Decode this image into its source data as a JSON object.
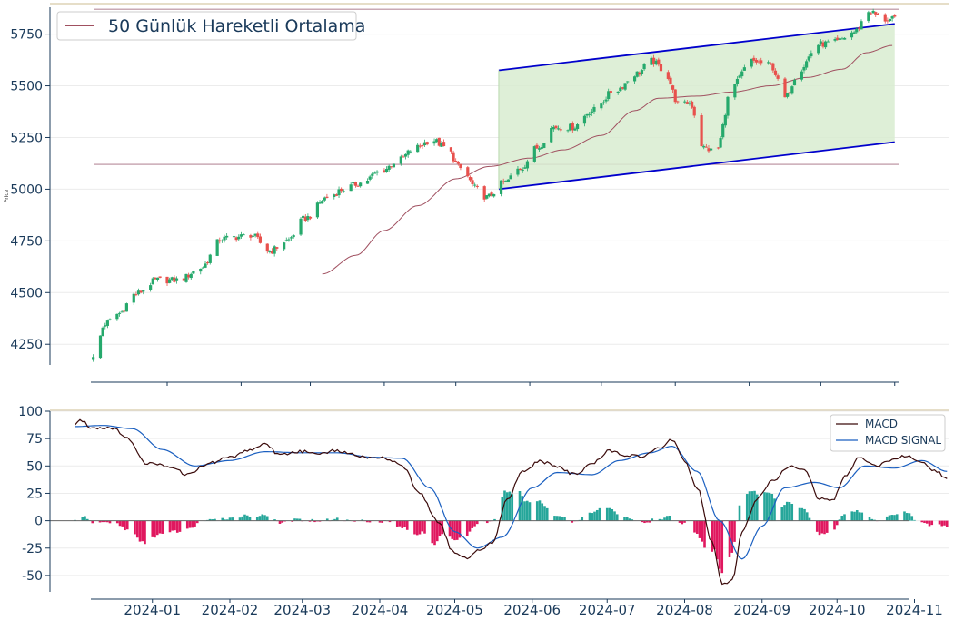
{
  "chart_data": [
    {
      "type": "candlestick",
      "ylabel": "Price",
      "ylim": [
        4150,
        5880
      ],
      "yticks": [
        4250,
        4500,
        4750,
        5000,
        5250,
        5500,
        5750
      ],
      "legend": {
        "placement": "top-left",
        "entries": [
          "50 Günlük Hareketli Ortalama"
        ]
      },
      "colors": {
        "up": "#26a96c",
        "down": "#e8514d",
        "ma": "#a05060",
        "channel": "#0000cc",
        "channel_fill": "#d8ecd0",
        "hline": "#c9a9b4"
      },
      "horizontal_lines": [
        5120,
        5870
      ],
      "channel": {
        "upper": [
          [
            "2024-05-19",
            5575
          ],
          [
            "2024-11-01",
            5800
          ]
        ],
        "lower": [
          [
            "2024-05-19",
            5000
          ],
          [
            "2024-11-01",
            5228
          ]
        ]
      },
      "ma50_keypoints": [
        [
          "2024-03-06",
          4590
        ],
        [
          "2024-03-20",
          4680
        ],
        [
          "2024-04-01",
          4800
        ],
        [
          "2024-04-15",
          4920
        ],
        [
          "2024-05-01",
          5050
        ],
        [
          "2024-05-15",
          5110
        ],
        [
          "2024-06-01",
          5150
        ],
        [
          "2024-06-15",
          5190
        ],
        [
          "2024-07-01",
          5260
        ],
        [
          "2024-07-15",
          5380
        ],
        [
          "2024-07-25",
          5440
        ],
        [
          "2024-08-10",
          5450
        ],
        [
          "2024-08-25",
          5470
        ],
        [
          "2024-09-10",
          5500
        ],
        [
          "2024-09-25",
          5540
        ],
        [
          "2024-10-10",
          5580
        ],
        [
          "2024-10-20",
          5660
        ],
        [
          "2024-10-31",
          5695
        ]
      ],
      "close_keypoints": [
        [
          "2023-12-01",
          4180
        ],
        [
          "2023-12-06",
          4350
        ],
        [
          "2023-12-12",
          4400
        ],
        [
          "2023-12-18",
          4490
        ],
        [
          "2023-12-28",
          4560
        ],
        [
          "2024-01-06",
          4560
        ],
        [
          "2024-01-15",
          4620
        ],
        [
          "2024-01-24",
          4760
        ],
        [
          "2024-01-31",
          4770
        ],
        [
          "2024-02-05",
          4780
        ],
        [
          "2024-02-13",
          4700
        ],
        [
          "2024-02-20",
          4750
        ],
        [
          "2024-02-28",
          4860
        ],
        [
          "2024-03-08",
          4960
        ],
        [
          "2024-03-15",
          5000
        ],
        [
          "2024-03-22",
          5030
        ],
        [
          "2024-03-31",
          5090
        ],
        [
          "2024-04-07",
          5140
        ],
        [
          "2024-04-14",
          5200
        ],
        [
          "2024-04-21",
          5240
        ],
        [
          "2024-04-27",
          5200
        ],
        [
          "2024-05-03",
          5100
        ],
        [
          "2024-05-10",
          5000
        ],
        [
          "2024-05-14",
          4960
        ],
        [
          "2024-05-21",
          5030
        ],
        [
          "2024-05-28",
          5100
        ],
        [
          "2024-06-04",
          5200
        ],
        [
          "2024-06-11",
          5300
        ],
        [
          "2024-06-19",
          5300
        ],
        [
          "2024-06-27",
          5380
        ],
        [
          "2024-07-07",
          5480
        ],
        [
          "2024-07-16",
          5560
        ],
        [
          "2024-07-22",
          5620
        ],
        [
          "2024-07-27",
          5580
        ],
        [
          "2024-08-03",
          5400
        ],
        [
          "2024-08-07",
          5420
        ],
        [
          "2024-08-13",
          5200
        ],
        [
          "2024-08-18",
          5180
        ],
        [
          "2024-08-25",
          5500
        ],
        [
          "2024-09-02",
          5620
        ],
        [
          "2024-09-10",
          5600
        ],
        [
          "2024-09-16",
          5440
        ],
        [
          "2024-09-22",
          5580
        ],
        [
          "2024-09-30",
          5700
        ],
        [
          "2024-10-07",
          5710
        ],
        [
          "2024-10-15",
          5760
        ],
        [
          "2024-10-21",
          5860
        ],
        [
          "2024-10-28",
          5820
        ],
        [
          "2024-11-01",
          5820
        ]
      ],
      "x_range": [
        "2023-11-30",
        "2024-11-03"
      ]
    },
    {
      "type": "macd",
      "ylim": [
        -65,
        100
      ],
      "yticks": [
        -50,
        -25,
        0,
        25,
        50,
        75,
        100
      ],
      "xticks": [
        "2024-01",
        "2024-02",
        "2024-03",
        "2024-04",
        "2024-05",
        "2024-06",
        "2024-07",
        "2024-08",
        "2024-09",
        "2024-10",
        "2024-11"
      ],
      "legend": {
        "placement": "top-right",
        "entries": [
          "MACD",
          "MACD SIGNAL"
        ]
      },
      "colors": {
        "macd": "#3a0a0a",
        "signal": "#1a5fc0",
        "hist_pos": "#26a69a",
        "hist_neg": "#e0185f"
      },
      "macd_keypoints": [
        [
          "2023-12-01",
          88
        ],
        [
          "2023-12-03",
          92
        ],
        [
          "2023-12-08",
          85
        ],
        [
          "2023-12-16",
          85
        ],
        [
          "2023-12-22",
          75
        ],
        [
          "2023-12-30",
          52
        ],
        [
          "2024-01-08",
          50
        ],
        [
          "2024-01-15",
          42
        ],
        [
          "2024-01-23",
          52
        ],
        [
          "2024-02-01",
          58
        ],
        [
          "2024-02-08",
          64
        ],
        [
          "2024-02-15",
          70
        ],
        [
          "2024-02-21",
          60
        ],
        [
          "2024-02-28",
          63
        ],
        [
          "2024-03-08",
          62
        ],
        [
          "2024-03-15",
          64
        ],
        [
          "2024-03-22",
          60
        ],
        [
          "2024-03-28",
          58
        ],
        [
          "2024-04-03",
          57
        ],
        [
          "2024-04-10",
          50
        ],
        [
          "2024-04-17",
          25
        ],
        [
          "2024-04-24",
          0
        ],
        [
          "2024-05-01",
          -30
        ],
        [
          "2024-05-06",
          -34
        ],
        [
          "2024-05-12",
          -25
        ],
        [
          "2024-05-16",
          -20
        ],
        [
          "2024-05-22",
          20
        ],
        [
          "2024-05-28",
          45
        ],
        [
          "2024-06-04",
          54
        ],
        [
          "2024-06-11",
          50
        ],
        [
          "2024-06-18",
          42
        ],
        [
          "2024-06-25",
          52
        ],
        [
          "2024-07-02",
          64
        ],
        [
          "2024-07-09",
          60
        ],
        [
          "2024-07-15",
          58
        ],
        [
          "2024-07-22",
          66
        ],
        [
          "2024-07-27",
          74
        ],
        [
          "2024-08-01",
          55
        ],
        [
          "2024-08-06",
          30
        ],
        [
          "2024-08-12",
          -20
        ],
        [
          "2024-08-16",
          -58
        ],
        [
          "2024-08-20",
          -55
        ],
        [
          "2024-08-24",
          -10
        ],
        [
          "2024-08-30",
          20
        ],
        [
          "2024-09-06",
          38
        ],
        [
          "2024-09-12",
          50
        ],
        [
          "2024-09-18",
          46
        ],
        [
          "2024-09-24",
          20
        ],
        [
          "2024-09-29",
          18
        ],
        [
          "2024-10-04",
          40
        ],
        [
          "2024-10-10",
          58
        ],
        [
          "2024-10-17",
          50
        ],
        [
          "2024-10-23",
          55
        ],
        [
          "2024-10-29",
          60
        ],
        [
          "2024-11-04",
          52
        ],
        [
          "2024-11-10",
          45
        ],
        [
          "2024-11-14",
          38
        ]
      ],
      "signal_keypoints": [
        [
          "2023-12-01",
          86
        ],
        [
          "2023-12-12",
          87
        ],
        [
          "2023-12-24",
          84
        ],
        [
          "2024-01-05",
          65
        ],
        [
          "2024-01-18",
          50
        ],
        [
          "2024-02-01",
          55
        ],
        [
          "2024-02-15",
          63
        ],
        [
          "2024-03-01",
          62
        ],
        [
          "2024-03-15",
          62
        ],
        [
          "2024-03-29",
          58
        ],
        [
          "2024-04-10",
          57
        ],
        [
          "2024-04-21",
          30
        ],
        [
          "2024-05-01",
          -10
        ],
        [
          "2024-05-10",
          -25
        ],
        [
          "2024-05-20",
          -15
        ],
        [
          "2024-06-01",
          30
        ],
        [
          "2024-06-11",
          44
        ],
        [
          "2024-06-25",
          42
        ],
        [
          "2024-07-06",
          55
        ],
        [
          "2024-07-18",
          62
        ],
        [
          "2024-07-27",
          68
        ],
        [
          "2024-08-06",
          45
        ],
        [
          "2024-08-15",
          0
        ],
        [
          "2024-08-24",
          -35
        ],
        [
          "2024-09-01",
          -5
        ],
        [
          "2024-09-10",
          30
        ],
        [
          "2024-09-22",
          35
        ],
        [
          "2024-10-02",
          30
        ],
        [
          "2024-10-12",
          50
        ],
        [
          "2024-10-24",
          48
        ],
        [
          "2024-11-04",
          55
        ],
        [
          "2024-11-14",
          45
        ]
      ],
      "x_range": [
        "2023-11-21",
        "2024-11-15"
      ]
    }
  ]
}
